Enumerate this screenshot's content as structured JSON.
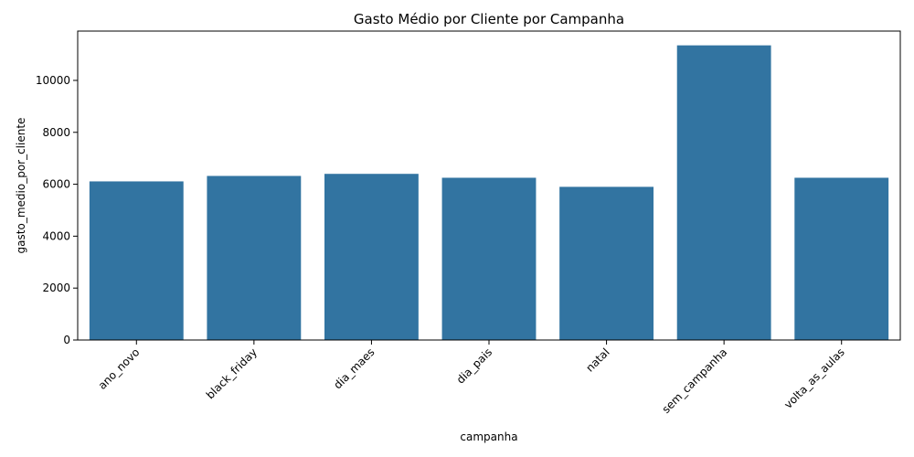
{
  "chart_data": {
    "type": "bar",
    "title": "Gasto Médio por Cliente por Campanha",
    "xlabel": "campanha",
    "ylabel": "gasto_medio_por_cliente",
    "categories": [
      "ano_novo",
      "black_friday",
      "dia_maes",
      "dia_pais",
      "natal",
      "sem_campanha",
      "volta_as_aulas"
    ],
    "values": [
      6110,
      6320,
      6400,
      6250,
      5900,
      11350,
      6250
    ],
    "yticks": [
      0,
      2000,
      4000,
      6000,
      8000,
      10000
    ],
    "ylim": [
      0,
      11900
    ],
    "bar_color": "#3274a1",
    "grid": false
  }
}
